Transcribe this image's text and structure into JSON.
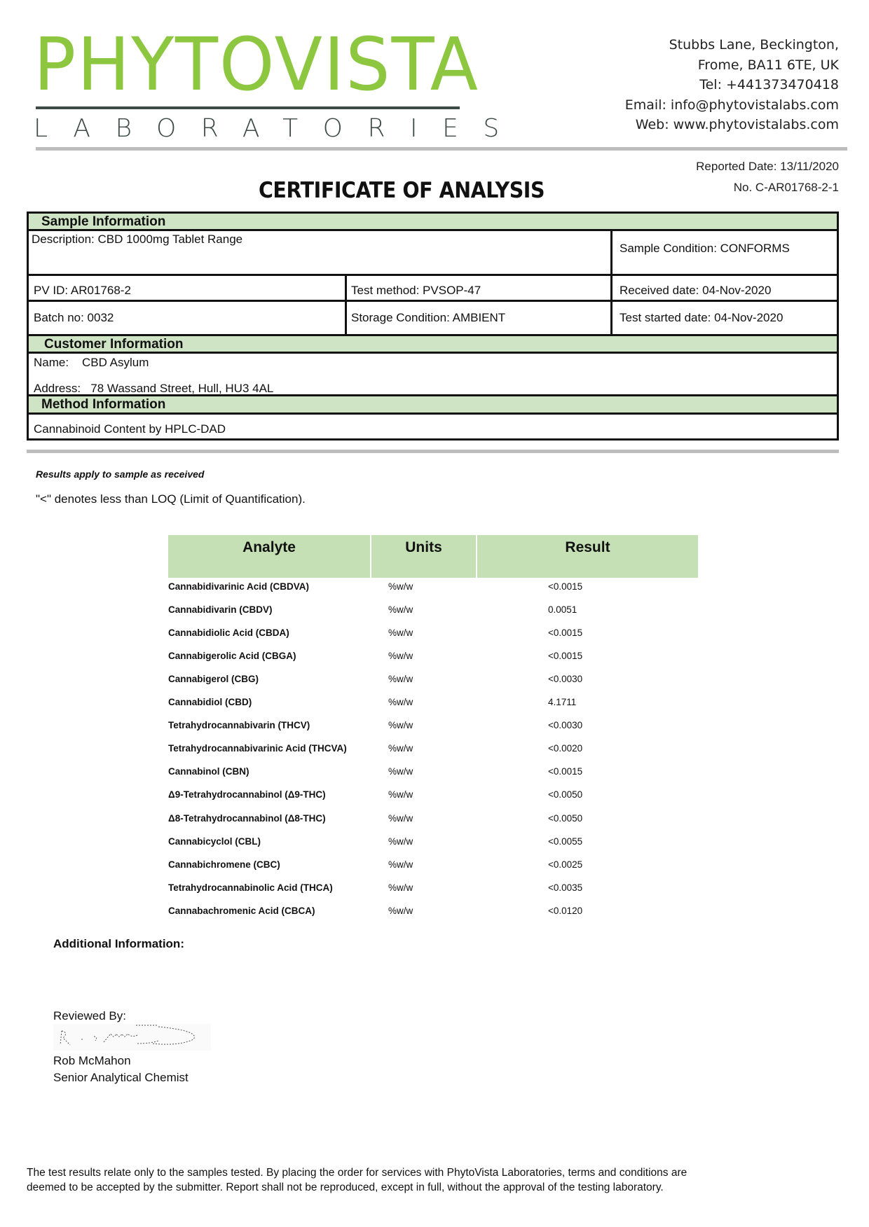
{
  "logo": {
    "name": "PHYTOVISTA",
    "sub": "LABORATORIES",
    "brand_color": "#8dc63f",
    "dark_color": "#3d4a45"
  },
  "address": {
    "line1": "Stubbs Lane, Beckington,",
    "line2": "Frome, BA11 6TE, UK",
    "tel": "Tel: +441373470418",
    "email": "Email: info@phytovistalabs.com",
    "web": "Web: www.phytovistalabs.com"
  },
  "report": {
    "reported_date": "Reported Date: 13/11/2020",
    "number": "No. C-AR01768-2-1",
    "title": "CERTIFICATE OF ANALYSIS"
  },
  "sample": {
    "header": "Sample Information",
    "description": "Description: CBD 1000mg Tablet Range",
    "condition": "Sample Condition: CONFORMS",
    "pv_id": "PV ID: AR01768-2",
    "test_method": "Test method: PVSOP-47",
    "received": "Received date: 04-Nov-2020",
    "batch": "Batch no: 0032",
    "storage": "Storage Condition: AMBIENT",
    "test_started": "Test started date: 04-Nov-2020"
  },
  "customer": {
    "header": "Customer Information",
    "name_label": "Name:",
    "name": "CBD Asylum",
    "address_label": "Address:",
    "address": "78 Wassand Street, Hull, HU3 4AL"
  },
  "method": {
    "header": "Method Information",
    "value": "Cannabinoid Content by HPLC-DAD"
  },
  "notes": {
    "results_apply": "Results apply to sample as received",
    "loq": "\"<\" denotes less than LOQ (Limit of Quantification)."
  },
  "table": {
    "headers": [
      "Analyte",
      "Units",
      "Result"
    ],
    "header_color": "#c5e0b4",
    "rows": [
      [
        "Cannabidivarinic Acid (CBDVA)",
        "%w/w",
        "<0.0015"
      ],
      [
        "Cannabidivarin (CBDV)",
        "%w/w",
        "0.0051"
      ],
      [
        "Cannabidiolic Acid (CBDA)",
        "%w/w",
        "<0.0015"
      ],
      [
        "Cannabigerolic Acid (CBGA)",
        "%w/w",
        "<0.0015"
      ],
      [
        "Cannabigerol (CBG)",
        "%w/w",
        "<0.0030"
      ],
      [
        "Cannabidiol (CBD)",
        "%w/w",
        "4.1711"
      ],
      [
        "Tetrahydrocannabivarin (THCV)",
        "%w/w",
        "<0.0030"
      ],
      [
        "Tetrahydrocannabivarinic Acid (THCVA)",
        "%w/w",
        "<0.0020"
      ],
      [
        "Cannabinol (CBN)",
        "%w/w",
        "<0.0015"
      ],
      [
        "Δ9-Tetrahydrocannabinol (Δ9-THC)",
        "%w/w",
        "<0.0050"
      ],
      [
        "Δ8-Tetrahydrocannabinol (Δ8-THC)",
        "%w/w",
        "<0.0050"
      ],
      [
        "Cannabicyclol (CBL)",
        "%w/w",
        "<0.0055"
      ],
      [
        "Cannabichromene (CBC)",
        "%w/w",
        "<0.0025"
      ],
      [
        "Tetrahydrocannabinolic Acid (THCA)",
        "%w/w",
        "<0.0035"
      ],
      [
        "Cannabachromenic Acid (CBCA)",
        "%w/w",
        "<0.0120"
      ]
    ]
  },
  "additional": {
    "label": "Additional Information:"
  },
  "review": {
    "label": "Reviewed By:",
    "name": "Rob McMahon",
    "role": "Senior Analytical Chemist"
  },
  "footer": {
    "line1": "The test results relate only to the samples tested.  By placing the order for services with PhytoVista Laboratories, terms and conditions are",
    "line2": "deemed to be accepted by the submitter. Report shall not be reproduced, except in full, without the approval of the testing laboratory."
  }
}
